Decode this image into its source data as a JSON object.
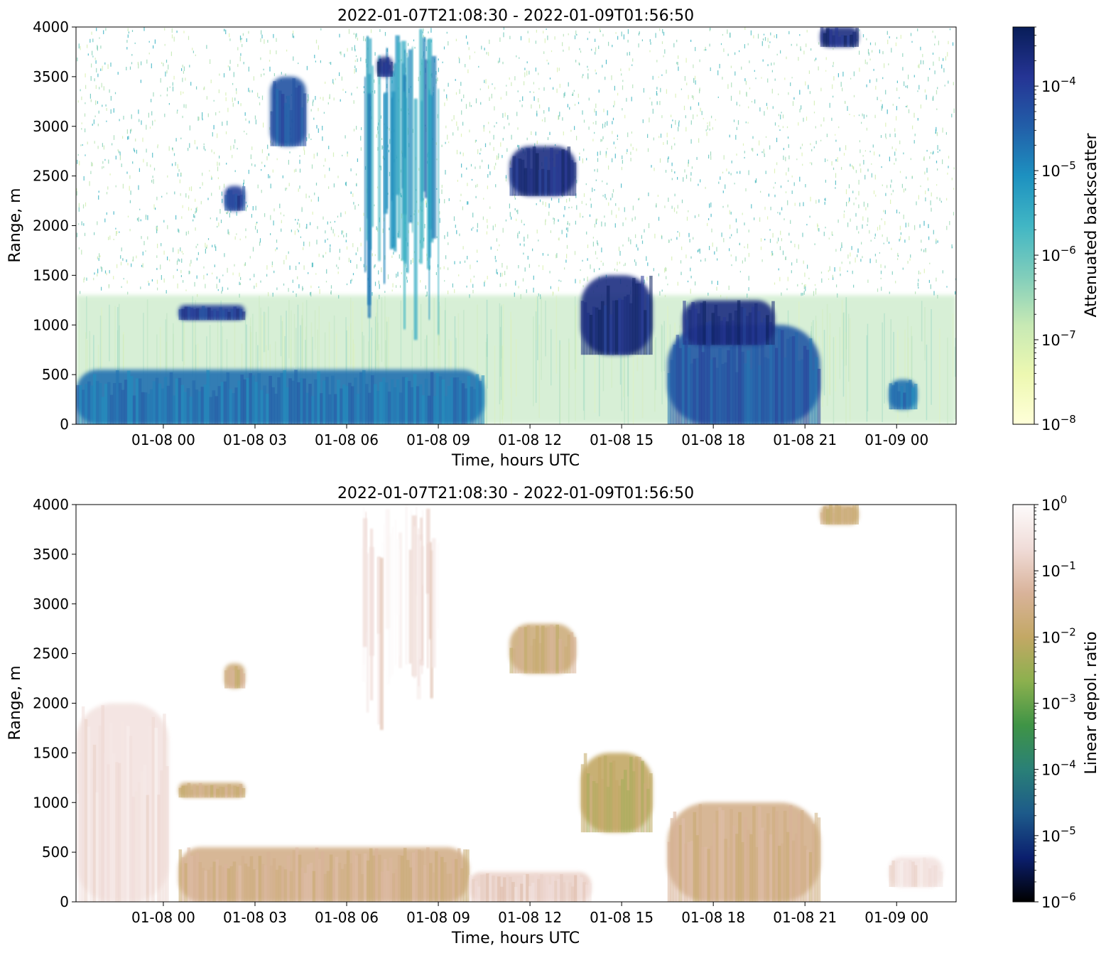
{
  "figure": {
    "background": "#ffffff"
  },
  "chart_data": [
    {
      "type": "heatmap",
      "title": "2022-01-07T21:08:30 - 2022-01-09T01:56:50",
      "xlabel": "Time, hours UTC",
      "ylabel": "Range, m",
      "xlim": [
        "2022-01-07T21:08:30",
        "2022-01-09T01:56:50"
      ],
      "ylim": [
        0,
        4000
      ],
      "x_ticks": [
        {
          "t": "2022-01-08T00:00",
          "label": "01-08 00"
        },
        {
          "t": "2022-01-08T03:00",
          "label": "01-08 03"
        },
        {
          "t": "2022-01-08T06:00",
          "label": "01-08 06"
        },
        {
          "t": "2022-01-08T09:00",
          "label": "01-08 09"
        },
        {
          "t": "2022-01-08T12:00",
          "label": "01-08 12"
        },
        {
          "t": "2022-01-08T15:00",
          "label": "01-08 15"
        },
        {
          "t": "2022-01-08T18:00",
          "label": "01-08 18"
        },
        {
          "t": "2022-01-08T21:00",
          "label": "01-08 21"
        },
        {
          "t": "2022-01-09T00:00",
          "label": "01-09 00"
        }
      ],
      "y_ticks": [
        0,
        500,
        1000,
        1500,
        2000,
        2500,
        3000,
        3500,
        4000
      ],
      "colorbar": {
        "label": "Attenuated backscatter",
        "scale": "log",
        "range": [
          1e-08,
          0.0005
        ],
        "colormap": "YlGnBu",
        "colors": [
          "#ffffd9",
          "#edf8b1",
          "#c7e9b4",
          "#7fcdbb",
          "#41b6c4",
          "#1d91c0",
          "#225ea8",
          "#253494",
          "#081d58"
        ],
        "ticks": [
          {
            "value": 1e-08,
            "base": "10",
            "exp": "−8"
          },
          {
            "value": 1e-07,
            "base": "10",
            "exp": "−7"
          },
          {
            "value": 1e-06,
            "base": "10",
            "exp": "−6"
          },
          {
            "value": 1e-05,
            "base": "10",
            "exp": "−5"
          },
          {
            "value": 0.0001,
            "base": "10",
            "exp": "−4"
          }
        ]
      },
      "features": [
        {
          "kind": "noise-field",
          "t0": "2022-01-07T21:08:30",
          "t1": "2022-01-09T01:56:50",
          "r0": 1300,
          "r1": 4000,
          "level": 2e-07
        },
        {
          "kind": "haze-layer",
          "t0": "2022-01-07T21:08:30",
          "t1": "2022-01-09T01:56:50",
          "r0": 0,
          "r1": 1300,
          "level": 2e-07
        },
        {
          "kind": "boundary-layer",
          "t0": "2022-01-07T21:08:30",
          "t1": "2022-01-08T10:30",
          "r0": 0,
          "r1": 550,
          "level": 2e-05
        },
        {
          "kind": "boundary-layer",
          "t0": "2022-01-08T16:30",
          "t1": "2022-01-08T21:30",
          "r0": 0,
          "r1": 1000,
          "level": 4e-05
        },
        {
          "kind": "cloud",
          "t0": "2022-01-08T00:30",
          "t1": "2022-01-08T02:40",
          "r0": 1050,
          "r1": 1200,
          "level": 0.0001
        },
        {
          "kind": "cloud",
          "t0": "2022-01-08T02:00",
          "t1": "2022-01-08T02:40",
          "r0": 2150,
          "r1": 2400,
          "level": 0.0001
        },
        {
          "kind": "cloud",
          "t0": "2022-01-08T03:30",
          "t1": "2022-01-08T04:40",
          "r0": 2800,
          "r1": 3500,
          "level": 5e-05
        },
        {
          "kind": "fallstreak",
          "t0": "2022-01-08T06:30",
          "t1": "2022-01-08T09:00",
          "r0": 1500,
          "r1": 4000,
          "level": 5e-06
        },
        {
          "kind": "cloud",
          "t0": "2022-01-08T07:00",
          "t1": "2022-01-08T07:30",
          "r0": 3500,
          "r1": 3700,
          "level": 0.0002
        },
        {
          "kind": "cloud",
          "t0": "2022-01-08T11:20",
          "t1": "2022-01-08T13:30",
          "r0": 2300,
          "r1": 2800,
          "level": 0.0002
        },
        {
          "kind": "cloud",
          "t0": "2022-01-08T13:40",
          "t1": "2022-01-08T16:00",
          "r0": 700,
          "r1": 1500,
          "level": 0.0002
        },
        {
          "kind": "cloud",
          "t0": "2022-01-08T17:00",
          "t1": "2022-01-08T20:00",
          "r0": 800,
          "r1": 1250,
          "level": 0.0002
        },
        {
          "kind": "cloud",
          "t0": "2022-01-08T21:30",
          "t1": "2022-01-08T22:45",
          "r0": 3800,
          "r1": 4000,
          "level": 0.0002
        },
        {
          "kind": "cloud",
          "t0": "2022-01-08T23:45",
          "t1": "2022-01-09T00:40",
          "r0": 150,
          "r1": 450,
          "level": 2e-05
        }
      ]
    },
    {
      "type": "heatmap",
      "title": "2022-01-07T21:08:30 - 2022-01-09T01:56:50",
      "xlabel": "Time, hours UTC",
      "ylabel": "Range, m",
      "xlim": [
        "2022-01-07T21:08:30",
        "2022-01-09T01:56:50"
      ],
      "ylim": [
        0,
        4000
      ],
      "x_ticks": [
        {
          "t": "2022-01-08T00:00",
          "label": "01-08 00"
        },
        {
          "t": "2022-01-08T03:00",
          "label": "01-08 03"
        },
        {
          "t": "2022-01-08T06:00",
          "label": "01-08 06"
        },
        {
          "t": "2022-01-08T09:00",
          "label": "01-08 09"
        },
        {
          "t": "2022-01-08T12:00",
          "label": "01-08 12"
        },
        {
          "t": "2022-01-08T15:00",
          "label": "01-08 15"
        },
        {
          "t": "2022-01-08T18:00",
          "label": "01-08 18"
        },
        {
          "t": "2022-01-08T21:00",
          "label": "01-08 21"
        },
        {
          "t": "2022-01-09T00:00",
          "label": "01-09 00"
        }
      ],
      "y_ticks": [
        0,
        500,
        1000,
        1500,
        2000,
        2500,
        3000,
        3500,
        4000
      ],
      "colorbar": {
        "label": "Linear depol. ratio",
        "scale": "log",
        "range": [
          1e-06,
          1
        ],
        "colormap": "gist_earth",
        "colors": [
          "#000000",
          "#0b1f6e",
          "#1d5a8a",
          "#2a8077",
          "#3f9446",
          "#8cb04e",
          "#c3a865",
          "#d9b39a",
          "#f0dcd8",
          "#fdfbfb"
        ],
        "ticks": [
          {
            "value": 1e-06,
            "base": "10",
            "exp": "−6"
          },
          {
            "value": 1e-05,
            "base": "10",
            "exp": "−5"
          },
          {
            "value": 0.0001,
            "base": "10",
            "exp": "−4"
          },
          {
            "value": 0.001,
            "base": "10",
            "exp": "−3"
          },
          {
            "value": 0.01,
            "base": "10",
            "exp": "−2"
          },
          {
            "value": 0.1,
            "base": "10",
            "exp": "−1"
          },
          {
            "value": 1,
            "base": "10",
            "exp": "0"
          }
        ]
      },
      "features": [
        {
          "kind": "aerosol",
          "t0": "2022-01-07T21:08:30",
          "t1": "2022-01-08T00:10",
          "r0": 0,
          "r1": 2000,
          "level": 0.3
        },
        {
          "kind": "boundary-layer",
          "t0": "2022-01-08T00:30",
          "t1": "2022-01-08T10:00",
          "r0": 0,
          "r1": 550,
          "level": 0.03
        },
        {
          "kind": "boundary-layer",
          "t0": "2022-01-08T10:00",
          "t1": "2022-01-08T14:00",
          "r0": 0,
          "r1": 300,
          "level": 0.15
        },
        {
          "kind": "cloud",
          "t0": "2022-01-08T00:30",
          "t1": "2022-01-08T02:40",
          "r0": 1050,
          "r1": 1200,
          "level": 0.02
        },
        {
          "kind": "cloud",
          "t0": "2022-01-08T02:00",
          "t1": "2022-01-08T02:40",
          "r0": 2150,
          "r1": 2400,
          "level": 0.02
        },
        {
          "kind": "fallstreak",
          "t0": "2022-01-08T06:30",
          "t1": "2022-01-08T09:00",
          "r0": 2200,
          "r1": 4000,
          "level": 0.3
        },
        {
          "kind": "cloud",
          "t0": "2022-01-08T11:20",
          "t1": "2022-01-08T13:30",
          "r0": 2300,
          "r1": 2800,
          "level": 0.02
        },
        {
          "kind": "cloud",
          "t0": "2022-01-08T13:40",
          "t1": "2022-01-08T16:00",
          "r0": 700,
          "r1": 1500,
          "level": 0.01
        },
        {
          "kind": "boundary-layer",
          "t0": "2022-01-08T16:30",
          "t1": "2022-01-08T21:30",
          "r0": 0,
          "r1": 1000,
          "level": 0.03
        },
        {
          "kind": "cloud",
          "t0": "2022-01-08T21:30",
          "t1": "2022-01-08T22:45",
          "r0": 3800,
          "r1": 4000,
          "level": 0.02
        },
        {
          "kind": "aerosol",
          "t0": "2022-01-08T23:45",
          "t1": "2022-01-09T01:30",
          "r0": 150,
          "r1": 450,
          "level": 0.3
        }
      ]
    }
  ]
}
